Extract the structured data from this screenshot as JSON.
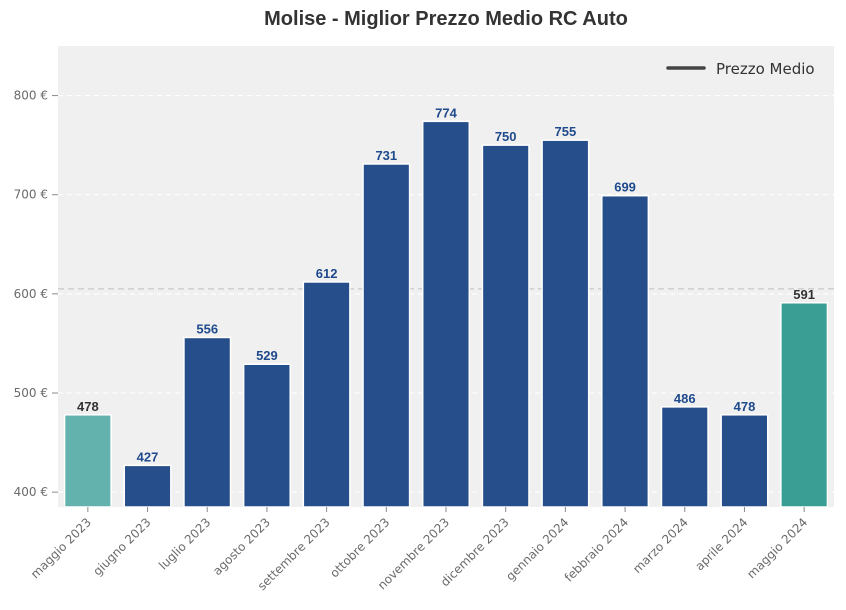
{
  "chart_data": {
    "type": "bar",
    "title": "Molise - Miglior Prezzo Medio RC Auto",
    "xlabel": "",
    "ylabel": "",
    "categories": [
      "maggio 2023",
      "giugno 2023",
      "luglio 2023",
      "agosto 2023",
      "settembre 2023",
      "ottobre 2023",
      "novembre 2023",
      "dicembre 2023",
      "gennaio 2024",
      "febbraio 2024",
      "marzo 2024",
      "aprile 2024",
      "maggio 2024"
    ],
    "values": [
      478,
      427,
      556,
      529,
      612,
      731,
      774,
      750,
      755,
      699,
      486,
      478,
      591
    ],
    "bar_colors": [
      "#64b2ad",
      "#264e8a",
      "#264e8a",
      "#264e8a",
      "#264e8a",
      "#264e8a",
      "#264e8a",
      "#264e8a",
      "#264e8a",
      "#264e8a",
      "#264e8a",
      "#264e8a",
      "#3a9e95"
    ],
    "label_colors": [
      "#333333",
      "#1f4a8c",
      "#1f4a8c",
      "#1f4a8c",
      "#1f4a8c",
      "#1f4a8c",
      "#1f4a8c",
      "#1f4a8c",
      "#1f4a8c",
      "#1f4a8c",
      "#1f4a8c",
      "#1f4a8c",
      "#333333"
    ],
    "ylim": [
      385,
      850
    ],
    "yticks": [
      400,
      500,
      600,
      700,
      800
    ],
    "ytick_labels": [
      "400 €",
      "500 €",
      "600 €",
      "700 €",
      "800 €"
    ],
    "reference_line": {
      "value": 605,
      "style": "dashed",
      "color": "#c8c8c8"
    },
    "grid": true,
    "legend": {
      "position": "top-right",
      "entries": [
        {
          "label": "Prezzo Medio",
          "color": "#444444",
          "marker": "line"
        }
      ]
    }
  }
}
